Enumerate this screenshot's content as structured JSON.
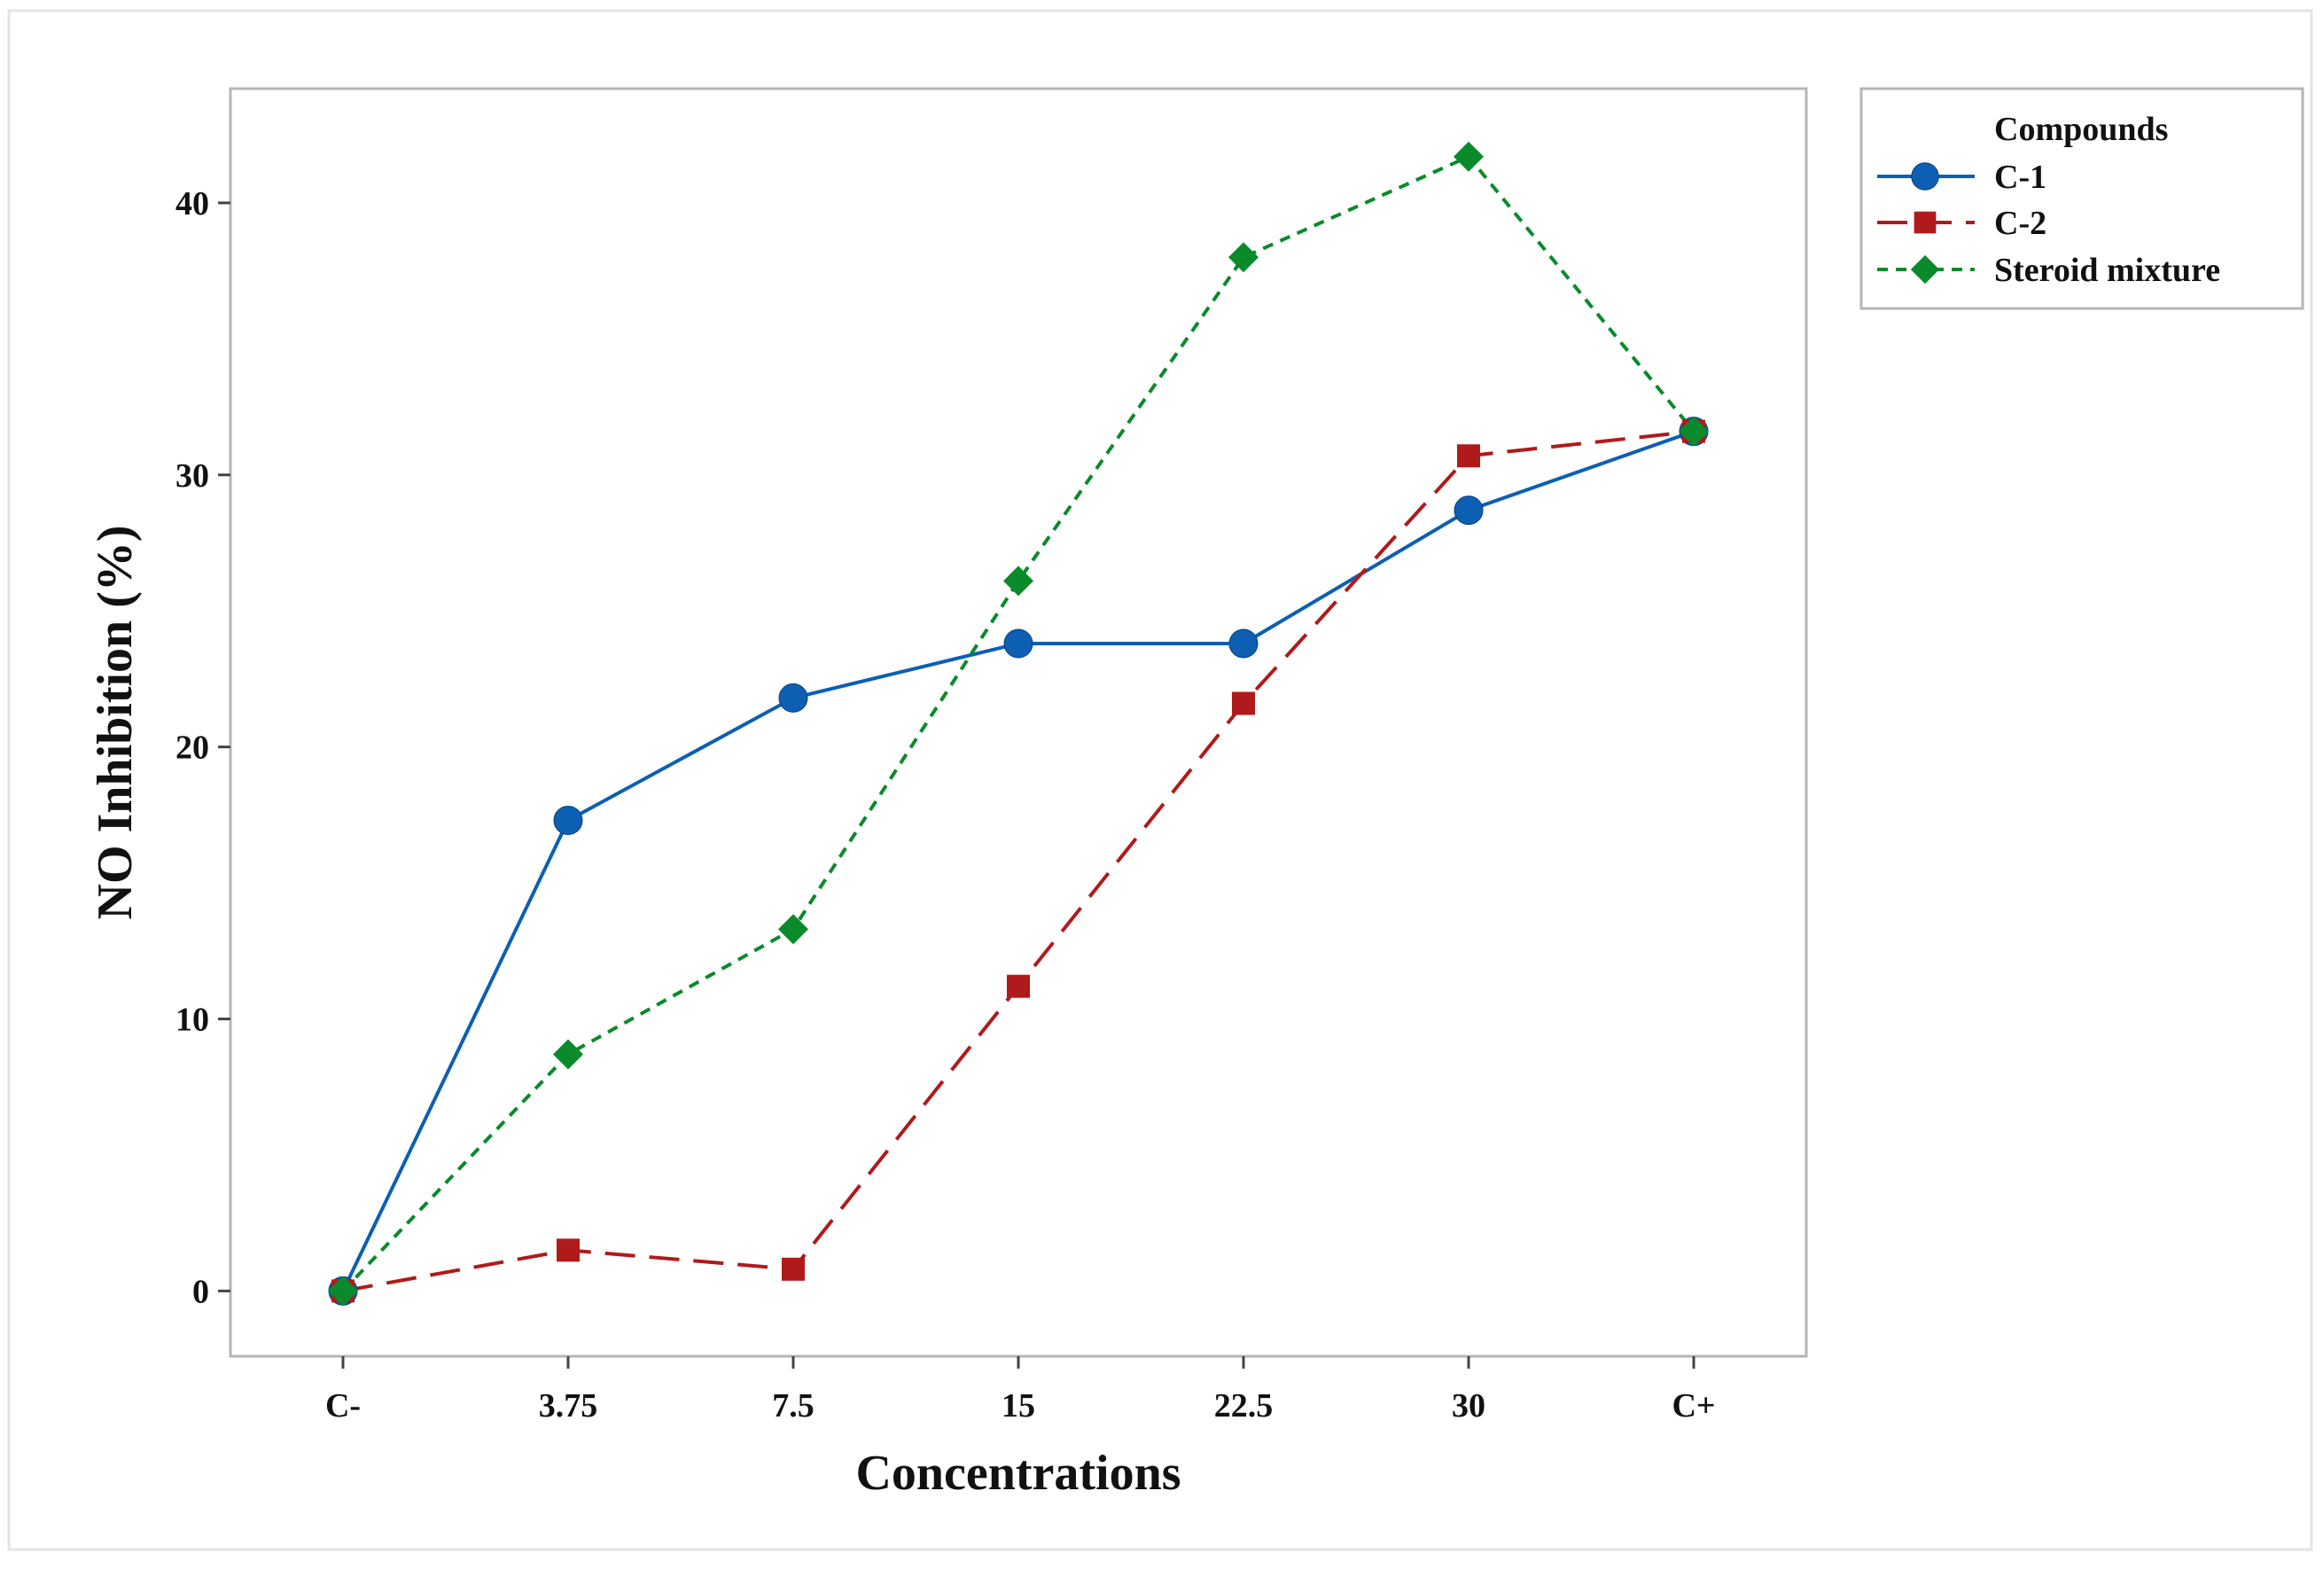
{
  "chart_data": {
    "type": "line",
    "title": "",
    "xlabel": "Concentrations",
    "ylabel": "NO Inhibition (%)",
    "categories": [
      "C-",
      "3.75",
      "7.5",
      "15",
      "22.5",
      "30",
      "C+"
    ],
    "ylim": [
      -2.4,
      44.2
    ],
    "yticks": [
      0,
      10,
      20,
      30,
      40
    ],
    "grid": false,
    "legend": {
      "title": "Compounds",
      "placement": "outside-top-right"
    },
    "series": [
      {
        "name": "C-1",
        "values": [
          0,
          17.3,
          21.8,
          23.8,
          23.8,
          28.7,
          31.6
        ],
        "color": "#0c5fb3",
        "marker": "circle",
        "dash": "solid"
      },
      {
        "name": "C-2",
        "values": [
          0,
          1.5,
          0.8,
          11.2,
          21.6,
          30.7,
          31.6
        ],
        "color": "#b01a1a",
        "marker": "square",
        "dash": "long-dash"
      },
      {
        "name": "Steroid mixture",
        "values": [
          0,
          8.7,
          13.3,
          26.1,
          38.0,
          41.7,
          31.6
        ],
        "color": "#0a8a2a",
        "marker": "diamond",
        "dash": "short-dash"
      }
    ]
  }
}
